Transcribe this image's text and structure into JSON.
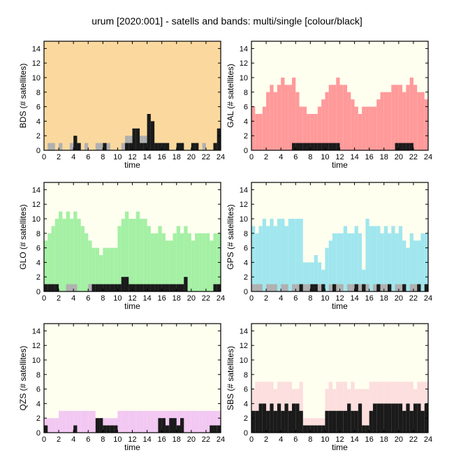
{
  "page_title": "urum [2020:001] - satells and bands: multi/single [colour/black]",
  "chart_data": [
    {
      "type": "bar",
      "system": "BDS",
      "ylabel": "BDS (# satellites)",
      "xlabel": "time",
      "bg_color": "#fbd99e",
      "fill_color": "#fbd99e",
      "single_color": "#1a1a1a",
      "light_color": "#b0b0b0",
      "xlim": [
        0,
        24
      ],
      "ylim": [
        0,
        15
      ],
      "xticks": [
        0,
        2,
        4,
        6,
        8,
        10,
        12,
        14,
        16,
        18,
        20,
        22,
        24
      ],
      "yticks": [
        0,
        2,
        4,
        6,
        8,
        10,
        12,
        14
      ],
      "time": [
        0.0,
        0.5,
        1.0,
        1.5,
        2.0,
        2.5,
        3.0,
        3.5,
        4.0,
        4.5,
        5.0,
        5.5,
        6.0,
        6.5,
        7.0,
        7.5,
        8.0,
        8.5,
        9.0,
        9.5,
        10.0,
        10.5,
        11.0,
        11.5,
        12.0,
        12.5,
        13.0,
        13.5,
        14.0,
        14.5,
        15.0,
        15.5,
        16.0,
        16.5,
        17.0,
        17.5,
        18.0,
        18.5,
        19.0,
        19.5,
        20.0,
        20.5,
        21.0,
        21.5,
        22.0,
        22.5,
        23.0,
        23.5
      ],
      "multi": [
        15,
        15,
        15,
        15,
        15,
        15,
        15,
        15,
        15,
        15,
        15,
        15,
        15,
        15,
        15,
        15,
        15,
        15,
        15,
        15,
        15,
        15,
        15,
        15,
        15,
        15,
        15,
        15,
        14,
        15,
        14,
        15,
        15,
        15,
        15,
        15,
        15,
        15,
        15,
        15,
        15,
        15,
        15,
        15,
        15,
        15,
        15,
        15
      ],
      "light": [
        0,
        1,
        1,
        0,
        1,
        0,
        0,
        1,
        1,
        0,
        0,
        1,
        0,
        0,
        1,
        1,
        0,
        1,
        0,
        0,
        0,
        1,
        2,
        2,
        2,
        3,
        2,
        2,
        3,
        2,
        1,
        1,
        1,
        1,
        0,
        0,
        1,
        1,
        0,
        0,
        1,
        1,
        0,
        1,
        0,
        0,
        1,
        2
      ],
      "single": [
        0,
        0,
        0,
        0,
        0,
        0,
        0,
        0,
        2,
        1,
        0,
        0,
        0,
        0,
        0,
        0,
        1,
        0,
        0,
        0,
        0,
        0,
        1,
        1,
        3,
        3,
        1,
        1,
        5,
        4,
        1,
        1,
        1,
        1,
        0,
        0,
        1,
        1,
        0,
        0,
        1,
        1,
        0,
        0,
        0,
        0,
        1,
        3
      ]
    },
    {
      "type": "bar",
      "system": "GAL",
      "ylabel": "GAL (# satellites)",
      "xlabel": "time",
      "bg_color": "#fffff0",
      "fill_color": "#ff9a9a",
      "single_color": "#1a1a1a",
      "light_color": "#b0b0b0",
      "xlim": [
        0,
        24
      ],
      "ylim": [
        0,
        15
      ],
      "xticks": [
        0,
        2,
        4,
        6,
        8,
        10,
        12,
        14,
        16,
        18,
        20,
        22,
        24
      ],
      "yticks": [
        0,
        2,
        4,
        6,
        8,
        10,
        12,
        14
      ],
      "time": [
        0.0,
        0.5,
        1.0,
        1.5,
        2.0,
        2.5,
        3.0,
        3.5,
        4.0,
        4.5,
        5.0,
        5.5,
        6.0,
        6.5,
        7.0,
        7.5,
        8.0,
        8.5,
        9.0,
        9.5,
        10.0,
        10.5,
        11.0,
        11.5,
        12.0,
        12.5,
        13.0,
        13.5,
        14.0,
        14.5,
        15.0,
        15.5,
        16.0,
        16.5,
        17.0,
        17.5,
        18.0,
        18.5,
        19.0,
        19.5,
        20.0,
        20.5,
        21.0,
        21.5,
        22.0,
        22.5,
        23.0,
        23.5
      ],
      "multi": [
        6,
        5,
        5,
        6,
        8,
        9,
        8,
        9,
        10,
        9,
        9,
        10,
        8,
        6,
        6,
        5,
        5,
        5,
        6,
        7,
        8,
        9,
        9,
        10,
        9,
        9,
        8,
        7,
        6,
        5,
        6,
        6,
        6,
        6,
        7,
        8,
        8,
        8,
        9,
        9,
        9,
        8,
        9,
        10,
        9,
        8,
        8,
        7
      ],
      "light": [
        0,
        0,
        0,
        0,
        0,
        0,
        0,
        0,
        0,
        0,
        0,
        0,
        0,
        0,
        0,
        0,
        0,
        0,
        0,
        0,
        0,
        0,
        0,
        0,
        0,
        0,
        0,
        0,
        0,
        0,
        0,
        0,
        0,
        0,
        0,
        0,
        0,
        0,
        0,
        0,
        0,
        0,
        0,
        0,
        0,
        0,
        0,
        0
      ],
      "single": [
        0,
        0,
        0,
        0,
        0,
        0,
        0,
        0,
        0,
        0,
        0,
        1,
        1,
        1,
        1,
        1,
        1,
        1,
        1,
        1,
        1,
        1,
        1,
        1,
        0,
        0,
        0,
        0,
        0,
        0,
        0,
        0,
        0,
        0,
        0,
        0,
        0,
        0,
        0,
        1,
        1,
        1,
        1,
        1,
        0,
        0,
        0,
        0
      ]
    },
    {
      "type": "bar",
      "system": "GLO",
      "ylabel": "GLO (# satellites)",
      "xlabel": "time",
      "bg_color": "#fffff0",
      "fill_color": "#a4f0a4",
      "single_color": "#1a1a1a",
      "light_color": "#b0b0b0",
      "xlim": [
        0,
        24
      ],
      "ylim": [
        0,
        15
      ],
      "xticks": [
        0,
        2,
        4,
        6,
        8,
        10,
        12,
        14,
        16,
        18,
        20,
        22,
        24
      ],
      "yticks": [
        0,
        2,
        4,
        6,
        8,
        10,
        12,
        14
      ],
      "time": [
        0.0,
        0.5,
        1.0,
        1.5,
        2.0,
        2.5,
        3.0,
        3.5,
        4.0,
        4.5,
        5.0,
        5.5,
        6.0,
        6.5,
        7.0,
        7.5,
        8.0,
        8.5,
        9.0,
        9.5,
        10.0,
        10.5,
        11.0,
        11.5,
        12.0,
        12.5,
        13.0,
        13.5,
        14.0,
        14.5,
        15.0,
        15.5,
        16.0,
        16.5,
        17.0,
        17.5,
        18.0,
        18.5,
        19.0,
        19.5,
        20.0,
        20.5,
        21.0,
        21.5,
        22.0,
        22.5,
        23.0,
        23.5
      ],
      "multi": [
        7,
        8,
        9,
        10,
        11,
        10,
        11,
        10,
        11,
        10,
        9,
        8,
        7,
        6,
        6,
        5,
        6,
        6,
        6,
        6,
        9,
        10,
        11,
        10,
        10,
        11,
        10,
        10,
        9,
        8,
        8,
        9,
        8,
        7,
        7,
        8,
        9,
        8,
        9,
        8,
        7,
        8,
        8,
        8,
        8,
        7,
        8,
        8
      ],
      "light": [
        1,
        1,
        1,
        1,
        0,
        0,
        1,
        1,
        1,
        0,
        0,
        0,
        1,
        1,
        1,
        1,
        1,
        1,
        1,
        1,
        1,
        1,
        2,
        1,
        1,
        1,
        1,
        1,
        1,
        1,
        1,
        1,
        1,
        1,
        1,
        1,
        1,
        1,
        2,
        0,
        0,
        0,
        0,
        0,
        0,
        0,
        1,
        1
      ],
      "single": [
        1,
        1,
        1,
        1,
        0,
        0,
        0,
        0,
        0,
        0,
        0,
        0,
        0,
        1,
        1,
        1,
        1,
        1,
        1,
        1,
        1,
        2,
        2,
        1,
        1,
        1,
        1,
        1,
        1,
        1,
        1,
        1,
        1,
        1,
        1,
        1,
        1,
        1,
        2,
        0,
        0,
        0,
        0,
        0,
        0,
        0,
        1,
        1
      ]
    },
    {
      "type": "bar",
      "system": "GPS",
      "ylabel": "GPS (# satellites)",
      "xlabel": "time",
      "bg_color": "#fffff0",
      "fill_color": "#a0e6ee",
      "single_color": "#1a1a1a",
      "light_color": "#b0b0b0",
      "xlim": [
        0,
        24
      ],
      "ylim": [
        0,
        15
      ],
      "xticks": [
        0,
        2,
        4,
        6,
        8,
        10,
        12,
        14,
        16,
        18,
        20,
        22,
        24
      ],
      "yticks": [
        0,
        2,
        4,
        6,
        8,
        10,
        12,
        14
      ],
      "time": [
        0.0,
        0.5,
        1.0,
        1.5,
        2.0,
        2.5,
        3.0,
        3.5,
        4.0,
        4.5,
        5.0,
        5.5,
        6.0,
        6.5,
        7.0,
        7.5,
        8.0,
        8.5,
        9.0,
        9.5,
        10.0,
        10.5,
        11.0,
        11.5,
        12.0,
        12.5,
        13.0,
        13.5,
        14.0,
        14.5,
        15.0,
        15.5,
        16.0,
        16.5,
        17.0,
        17.5,
        18.0,
        18.5,
        19.0,
        19.5,
        20.0,
        20.5,
        21.0,
        21.5,
        22.0,
        22.5,
        23.0,
        23.5
      ],
      "multi": [
        9,
        8,
        9,
        10,
        9,
        10,
        9,
        10,
        10,
        9,
        10,
        10,
        10,
        10,
        4,
        4,
        4,
        5,
        4,
        3,
        6,
        7,
        8,
        8,
        8,
        9,
        8,
        8,
        9,
        8,
        3,
        10,
        9,
        9,
        9,
        8,
        9,
        8,
        9,
        8,
        9,
        7,
        6,
        8,
        7,
        7,
        8,
        8
      ],
      "light": [
        1,
        1,
        1,
        0,
        1,
        1,
        1,
        0,
        1,
        1,
        0,
        1,
        1,
        0,
        1,
        1,
        1,
        1,
        1,
        1,
        0,
        1,
        1,
        1,
        1,
        0,
        1,
        1,
        1,
        1,
        1,
        1,
        0,
        1,
        1,
        1,
        1,
        1,
        0,
        1,
        1,
        1,
        0,
        1,
        1,
        1,
        0,
        1
      ],
      "single": [
        0,
        0,
        0,
        0,
        0,
        0,
        0,
        0,
        0,
        0,
        0,
        0,
        0,
        1,
        0,
        0,
        1,
        1,
        0,
        1,
        0,
        0,
        1,
        0,
        0,
        0,
        0,
        0,
        1,
        0,
        1,
        0,
        0,
        0,
        1,
        0,
        0,
        1,
        0,
        0,
        0,
        1,
        0,
        0,
        0,
        1,
        0,
        1
      ]
    },
    {
      "type": "bar",
      "system": "QZS",
      "ylabel": "QZS (# satellites)",
      "xlabel": "time",
      "bg_color": "#fffff0",
      "fill_color": "#f2c8f2",
      "single_color": "#1a1a1a",
      "light_color": "#b0b0b0",
      "xlim": [
        0,
        24
      ],
      "ylim": [
        0,
        15
      ],
      "xticks": [
        0,
        2,
        4,
        6,
        8,
        10,
        12,
        14,
        16,
        18,
        20,
        22,
        24
      ],
      "yticks": [
        0,
        2,
        4,
        6,
        8,
        10,
        12,
        14
      ],
      "time": [
        0.0,
        0.5,
        1.0,
        1.5,
        2.0,
        2.5,
        3.0,
        3.5,
        4.0,
        4.5,
        5.0,
        5.5,
        6.0,
        6.5,
        7.0,
        7.5,
        8.0,
        8.5,
        9.0,
        9.5,
        10.0,
        10.5,
        11.0,
        11.5,
        12.0,
        12.5,
        13.0,
        13.5,
        14.0,
        14.5,
        15.0,
        15.5,
        16.0,
        16.5,
        17.0,
        17.5,
        18.0,
        18.5,
        19.0,
        19.5,
        20.0,
        20.5,
        21.0,
        21.5,
        22.0,
        22.5,
        23.0,
        23.5
      ],
      "multi": [
        2,
        2,
        2,
        2,
        3,
        3,
        3,
        3,
        3,
        3,
        3,
        3,
        3,
        3,
        2,
        2,
        2,
        2,
        2,
        2,
        3,
        3,
        3,
        3,
        3,
        3,
        3,
        3,
        3,
        3,
        3,
        3,
        3,
        3,
        3,
        3,
        3,
        3,
        3,
        3,
        3,
        3,
        3,
        3,
        3,
        3,
        3,
        3
      ],
      "light": [
        0,
        0,
        0,
        0,
        0,
        0,
        0,
        0,
        0,
        0,
        0,
        0,
        0,
        0,
        0,
        0,
        0,
        0,
        0,
        0,
        0,
        0,
        0,
        0,
        0,
        0,
        0,
        0,
        0,
        0,
        0,
        0,
        0,
        0,
        0,
        0,
        0,
        0,
        0,
        0,
        0,
        0,
        0,
        0,
        0,
        0,
        0,
        0
      ],
      "single": [
        1,
        0,
        0,
        0,
        0,
        0,
        0,
        0,
        1,
        0,
        0,
        0,
        0,
        0,
        2,
        2,
        1,
        1,
        1,
        1,
        0,
        0,
        0,
        0,
        0,
        0,
        0,
        0,
        0,
        0,
        0,
        2,
        2,
        1,
        2,
        2,
        1,
        2,
        0,
        0,
        0,
        0,
        0,
        0,
        0,
        1,
        1,
        1
      ]
    },
    {
      "type": "bar",
      "system": "SBS",
      "ylabel": "SBS (# satellites)",
      "xlabel": "time",
      "bg_color": "#fffff0",
      "fill_color": "#fcdede",
      "single_color": "#1a1a1a",
      "light_color": "#b0b0b0",
      "xlim": [
        0,
        24
      ],
      "ylim": [
        0,
        15
      ],
      "xticks": [
        0,
        2,
        4,
        6,
        8,
        10,
        12,
        14,
        16,
        18,
        20,
        22,
        24
      ],
      "yticks": [
        0,
        2,
        4,
        6,
        8,
        10,
        12,
        14
      ],
      "time": [
        0.0,
        0.5,
        1.0,
        1.5,
        2.0,
        2.5,
        3.0,
        3.5,
        4.0,
        4.5,
        5.0,
        5.5,
        6.0,
        6.5,
        7.0,
        7.5,
        8.0,
        8.5,
        9.0,
        9.5,
        10.0,
        10.5,
        11.0,
        11.5,
        12.0,
        12.5,
        13.0,
        13.5,
        14.0,
        14.5,
        15.0,
        15.5,
        16.0,
        16.5,
        17.0,
        17.5,
        18.0,
        18.5,
        19.0,
        19.5,
        20.0,
        20.5,
        21.0,
        21.5,
        22.0,
        22.5,
        23.0,
        23.5
      ],
      "multi": [
        6,
        7,
        7,
        7,
        7,
        7,
        6,
        7,
        7,
        7,
        7,
        6,
        6,
        7,
        2,
        2,
        2,
        2,
        2,
        2,
        6,
        7,
        6,
        7,
        7,
        7,
        6,
        7,
        6,
        6,
        6,
        6,
        7,
        7,
        7,
        7,
        7,
        7,
        7,
        7,
        7,
        7,
        7,
        7,
        6,
        7,
        7,
        7
      ],
      "light": [
        0,
        0,
        0,
        0,
        0,
        0,
        0,
        0,
        0,
        0,
        0,
        0,
        0,
        0,
        0,
        0,
        0,
        0,
        0,
        0,
        0,
        0,
        0,
        0,
        0,
        0,
        0,
        0,
        0,
        0,
        0,
        0,
        0,
        0,
        0,
        0,
        0,
        0,
        0,
        0,
        0,
        0,
        0,
        0,
        0,
        0,
        0,
        0
      ],
      "single": [
        3,
        3,
        4,
        4,
        3,
        4,
        3,
        4,
        3,
        4,
        3,
        4,
        4,
        3,
        1,
        1,
        1,
        1,
        1,
        1,
        3,
        3,
        3,
        3,
        3,
        3,
        4,
        3,
        3,
        4,
        1,
        1,
        3,
        4,
        4,
        4,
        4,
        4,
        4,
        4,
        4,
        3,
        4,
        3,
        4,
        4,
        3,
        4
      ]
    }
  ]
}
